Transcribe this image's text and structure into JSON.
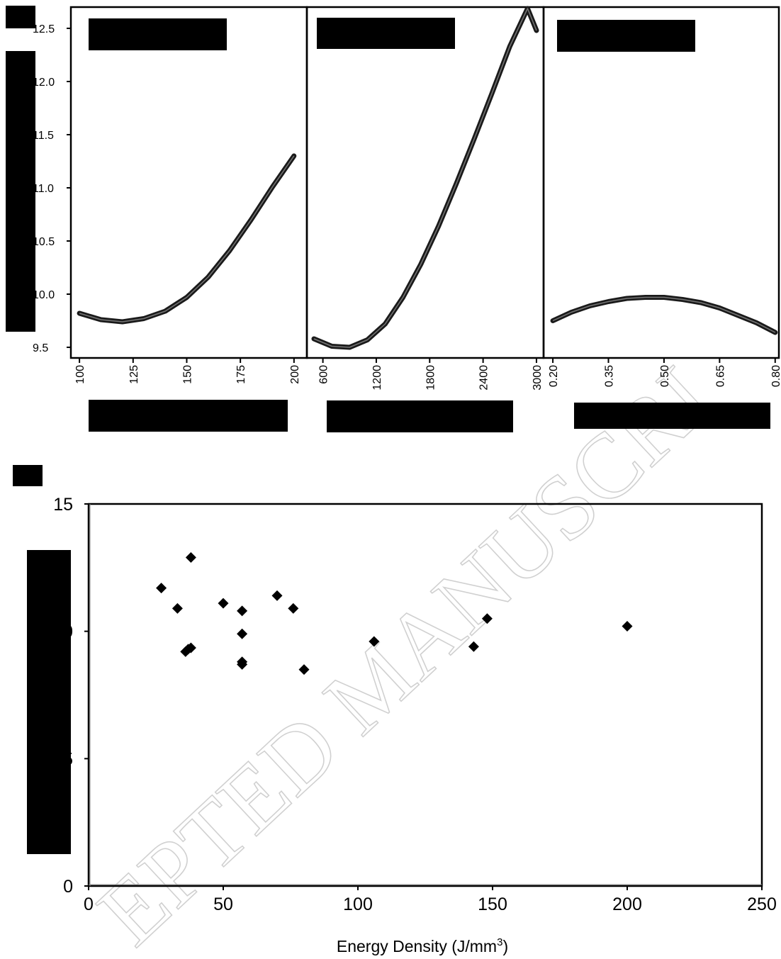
{
  "chart_data": [
    {
      "type": "line",
      "panel": "a",
      "ylim": [
        9.4,
        12.7
      ],
      "yticks": [
        "9.5",
        "10.0",
        "10.5",
        "11.0",
        "11.5",
        "12.0",
        "12.5"
      ],
      "subplots": [
        {
          "xlim": [
            96,
            206
          ],
          "xticks": [
            "100",
            "125",
            "150",
            "175",
            "200"
          ],
          "x": [
            100,
            110,
            120,
            130,
            140,
            150,
            160,
            170,
            180,
            190,
            200
          ],
          "y": [
            9.82,
            9.76,
            9.74,
            9.77,
            9.84,
            9.97,
            10.16,
            10.41,
            10.7,
            11.01,
            11.3
          ]
        },
        {
          "xlim": [
            420,
            3080
          ],
          "xticks": [
            "600",
            "1200",
            "1800",
            "2400",
            "3000"
          ],
          "x": [
            500,
            700,
            900,
            1100,
            1300,
            1500,
            1700,
            1900,
            2100,
            2300,
            2500,
            2700,
            2900,
            3000
          ],
          "y": [
            9.58,
            9.51,
            9.5,
            9.57,
            9.72,
            9.97,
            10.28,
            10.64,
            11.04,
            11.46,
            11.89,
            12.33,
            12.77,
            12.48
          ]
        },
        {
          "xlim": [
            0.175,
            0.81
          ],
          "xticks": [
            "0.20",
            "0.35",
            "0.50",
            "0.65",
            "0.80"
          ],
          "x": [
            0.2,
            0.25,
            0.3,
            0.35,
            0.4,
            0.45,
            0.5,
            0.55,
            0.6,
            0.65,
            0.7,
            0.75,
            0.8
          ],
          "y": [
            9.75,
            9.83,
            9.89,
            9.93,
            9.96,
            9.97,
            9.97,
            9.95,
            9.92,
            9.87,
            9.8,
            9.73,
            9.64
          ]
        }
      ]
    },
    {
      "type": "scatter",
      "panel": "b",
      "xlim": [
        0,
        250
      ],
      "ylim": [
        0,
        15
      ],
      "xticks": [
        "0",
        "50",
        "100",
        "150",
        "200",
        "250"
      ],
      "yticks": [
        "0",
        "5",
        "10",
        "15"
      ],
      "xlabel": "Energy Density (J/mm",
      "xlabel_sup": "3",
      "xlabel_tail": ")",
      "x": [
        27,
        33,
        36,
        37,
        38,
        38,
        50,
        57,
        57,
        57,
        57,
        70,
        76,
        80,
        106,
        143,
        148,
        200
      ],
      "y": [
        11.7,
        10.9,
        9.2,
        9.3,
        12.9,
        9.35,
        11.1,
        9.9,
        8.8,
        8.7,
        10.8,
        11.4,
        10.9,
        8.5,
        9.6,
        9.4,
        10.5,
        10.2
      ]
    }
  ]
}
